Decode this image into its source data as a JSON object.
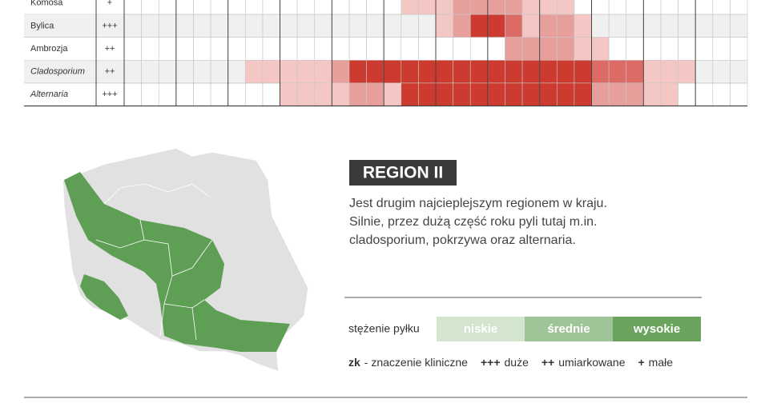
{
  "table": {
    "rows": [
      {
        "name": "Komosa",
        "zk": "+",
        "italic": false,
        "levels": [
          0,
          0,
          0,
          0,
          0,
          0,
          0,
          0,
          0,
          0,
          0,
          0,
          0,
          0,
          0,
          0,
          1,
          1,
          1,
          2,
          2,
          2,
          2,
          1,
          1,
          1,
          0,
          0,
          0,
          0,
          0,
          0,
          0,
          0,
          0,
          0
        ]
      },
      {
        "name": "Bylica",
        "zk": "+++",
        "italic": false,
        "levels": [
          0,
          0,
          0,
          0,
          0,
          0,
          0,
          0,
          0,
          0,
          0,
          0,
          0,
          0,
          0,
          0,
          0,
          0,
          1,
          2,
          4,
          4,
          3,
          1,
          2,
          2,
          1,
          0,
          0,
          0,
          0,
          0,
          0,
          0,
          0,
          0
        ]
      },
      {
        "name": "Ambrozja",
        "zk": "++",
        "italic": false,
        "levels": [
          0,
          0,
          0,
          0,
          0,
          0,
          0,
          0,
          0,
          0,
          0,
          0,
          0,
          0,
          0,
          0,
          0,
          0,
          0,
          0,
          0,
          0,
          2,
          2,
          2,
          2,
          1,
          1,
          0,
          0,
          0,
          0,
          0,
          0,
          0,
          0
        ]
      },
      {
        "name": "Cladosporium",
        "zk": "++",
        "italic": true,
        "levels": [
          0,
          0,
          0,
          0,
          0,
          0,
          0,
          1,
          1,
          1,
          1,
          1,
          2,
          4,
          4,
          4,
          4,
          4,
          4,
          4,
          4,
          4,
          4,
          4,
          4,
          4,
          4,
          3,
          3,
          3,
          1,
          1,
          1,
          0,
          0,
          0
        ]
      },
      {
        "name": "Alternaria",
        "zk": "+++",
        "italic": true,
        "levels": [
          0,
          0,
          0,
          0,
          0,
          0,
          0,
          0,
          0,
          1,
          1,
          1,
          1,
          2,
          2,
          1,
          4,
          4,
          4,
          4,
          4,
          4,
          4,
          4,
          4,
          4,
          4,
          2,
          2,
          2,
          1,
          1,
          0,
          0,
          0,
          0
        ]
      }
    ]
  },
  "region": {
    "title": "REGION II",
    "lines": [
      "Jest drugim najcieplejszym regionem w kraju.",
      "Silnie, przez dużą część roku pyli tutaj m.in.",
      "cladosporium, pokrzywa oraz alternaria."
    ]
  },
  "legend": {
    "label": "stężenie pyłku",
    "items": [
      {
        "text": "niskie",
        "color": "#d3e4cf"
      },
      {
        "text": "średnie",
        "color": "#9fc498"
      },
      {
        "text": "wysokie",
        "color": "#6aa35c"
      }
    ]
  },
  "footnote": [
    {
      "symbol": "zk",
      "text": "- znaczenie kliniczne"
    },
    {
      "symbol": "+++",
      "text": "duże"
    },
    {
      "symbol": "++",
      "text": "umiarkowane"
    },
    {
      "symbol": "+",
      "text": "małe"
    }
  ]
}
